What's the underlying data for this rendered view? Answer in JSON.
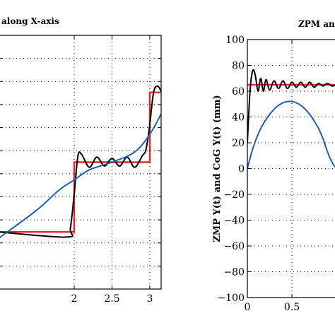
{
  "chart_data": [
    {
      "type": "line",
      "title": "along X-axis",
      "xlabel": "",
      "ylabel": "",
      "xlim": [
        1.0,
        3.15
      ],
      "ylim": [
        -1.0,
        1.0
      ],
      "x_ticks": [
        2,
        2.5,
        3
      ],
      "x_tick_labels": [
        "2",
        "2.5",
        "3"
      ],
      "grid": true,
      "series": [
        {
          "color": "#e8262a",
          "x": [
            1.0,
            2.0,
            2.0,
            3.0,
            3.0,
            3.15
          ],
          "y": [
            -0.55,
            -0.55,
            0.0,
            0.0,
            0.55,
            0.55
          ]
        },
        {
          "color": "#000000",
          "x": [
            1.0,
            1.9,
            1.95,
            2.0,
            2.05,
            2.1,
            2.2,
            2.3,
            2.4,
            2.5,
            2.6,
            2.7,
            2.8,
            2.9,
            2.95,
            3.0,
            3.05,
            3.1,
            3.15
          ],
          "y": [
            -0.55,
            -0.59,
            -0.52,
            -0.25,
            0.05,
            0.06,
            -0.04,
            0.04,
            -0.03,
            0.03,
            -0.03,
            0.04,
            -0.04,
            0.05,
            0.1,
            0.3,
            0.55,
            0.6,
            0.56
          ]
        },
        {
          "color": "#1f5fb0",
          "x": [
            1.0,
            1.5,
            1.8,
            2.0,
            2.2,
            2.5,
            2.8,
            3.0,
            3.15
          ],
          "y": [
            -0.6,
            -0.38,
            -0.22,
            -0.14,
            -0.06,
            0.0,
            0.08,
            0.22,
            0.38
          ]
        }
      ]
    },
    {
      "type": "line",
      "title": "ZPM an",
      "xlabel": "",
      "ylabel": "ZMP Y(t) and CoG Y(t) (mm)",
      "xlim": [
        0.0,
        1.0
      ],
      "ylim": [
        -100,
        100
      ],
      "x_ticks": [
        0,
        0.5
      ],
      "x_tick_labels": [
        "0",
        "0.5"
      ],
      "y_ticks": [
        -100,
        -80,
        -60,
        -40,
        -20,
        0,
        20,
        40,
        60,
        80,
        100
      ],
      "y_tick_labels": [
        "−100",
        "−80",
        "−60",
        "−40",
        "−20",
        "0",
        "20",
        "40",
        "60",
        "80",
        "100"
      ],
      "grid": true,
      "series": [
        {
          "color": "#e8262a",
          "x": [
            0.0,
            1.0
          ],
          "y": [
            65,
            65
          ]
        },
        {
          "color": "#000000",
          "x": [
            0.0,
            0.03,
            0.06,
            0.09,
            0.12,
            0.15,
            0.18,
            0.21,
            0.25,
            0.3,
            0.35,
            0.4,
            0.45,
            0.5,
            0.55,
            0.6,
            0.65,
            0.7,
            0.75,
            0.8,
            0.85,
            0.9,
            0.95,
            1.0
          ],
          "y": [
            20,
            60,
            76,
            72,
            60,
            70,
            60,
            69,
            61,
            68,
            62,
            68,
            62,
            67,
            63,
            67,
            63,
            67,
            63,
            66,
            64,
            66,
            64,
            65
          ]
        },
        {
          "color": "#1f5fb0",
          "x": [
            0.0,
            0.05,
            0.1,
            0.15,
            0.2,
            0.25,
            0.3,
            0.35,
            0.4,
            0.45,
            0.5,
            0.55,
            0.6,
            0.65,
            0.7,
            0.75,
            0.8,
            0.85,
            0.9,
            0.95,
            1.0
          ],
          "y": [
            0,
            13,
            23,
            31,
            37,
            42,
            46,
            49,
            51,
            52,
            52,
            51,
            49,
            46,
            42,
            37,
            31,
            23,
            13,
            5,
            0
          ]
        }
      ]
    }
  ]
}
